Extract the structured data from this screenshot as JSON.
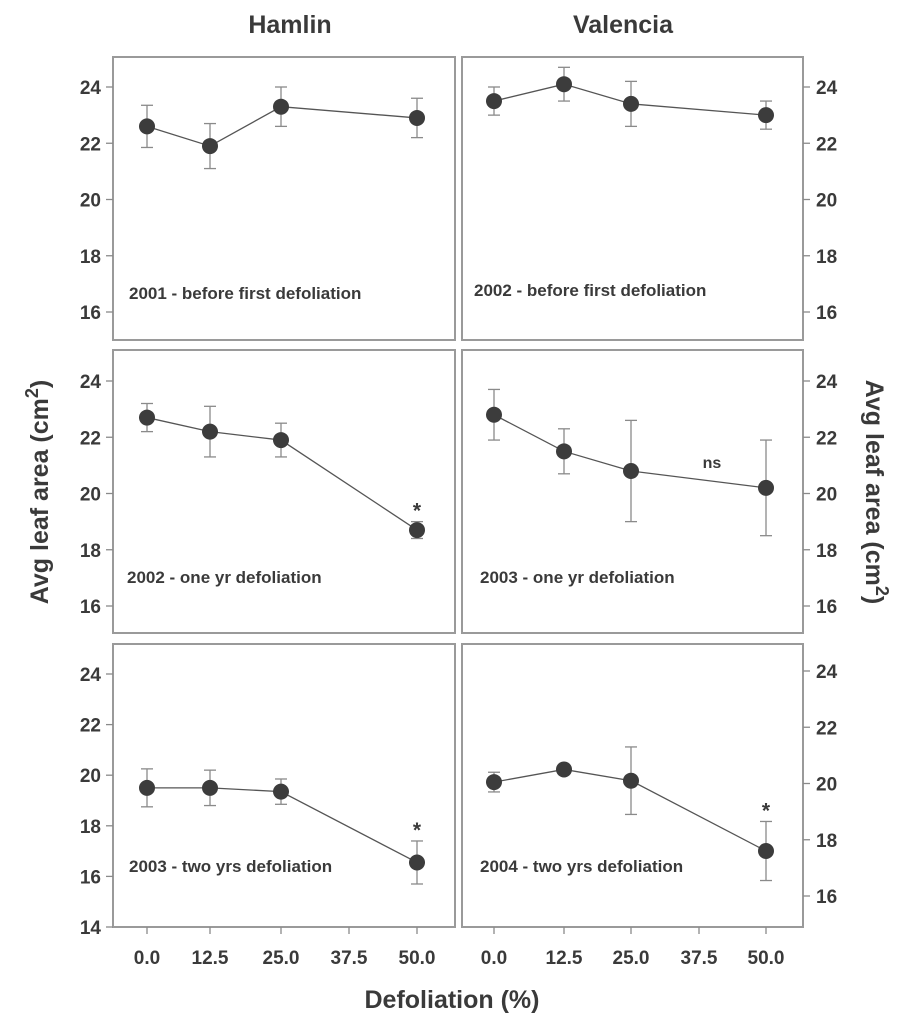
{
  "figure": {
    "column_titles": [
      "Hamlin",
      "Valencia"
    ],
    "xlabel": "Defoliation (%)",
    "ylabel_left": "Avg leaf area (cm",
    "ylabel_right": "Avg leaf area (cm",
    "ylabel_sup": "2",
    "ylabel_close": ")"
  },
  "chart_data": [
    {
      "type": "line",
      "panel": "Hamlin, row 1",
      "label": "2001 - before first defoliation",
      "x": [
        0.0,
        12.5,
        25.0,
        50.0
      ],
      "series": [
        {
          "values": [
            22.6,
            21.9,
            23.3,
            22.9
          ],
          "errors": [
            0.75,
            0.8,
            0.7,
            0.7
          ]
        }
      ],
      "significance": [
        null,
        null,
        null,
        null
      ],
      "ylim": [
        15,
        25
      ],
      "yticks": [
        16,
        18,
        20,
        22,
        24
      ],
      "ytick_labels": [
        "16",
        "18",
        "20",
        "22",
        "24"
      ],
      "ytick_side": "left"
    },
    {
      "type": "line",
      "panel": "Valencia, row 1",
      "label": "2002 - before first defoliation",
      "x": [
        0.0,
        12.5,
        25.0,
        50.0
      ],
      "series": [
        {
          "values": [
            23.5,
            24.1,
            23.4,
            23.0
          ],
          "errors": [
            0.5,
            0.6,
            0.8,
            0.5
          ]
        }
      ],
      "significance": [
        null,
        null,
        null,
        null
      ],
      "ylim": [
        15,
        25
      ],
      "yticks": [
        16,
        18,
        20,
        22,
        24
      ],
      "ytick_labels": [
        "16",
        "18",
        "20",
        "22",
        "24"
      ],
      "ytick_side": "right"
    },
    {
      "type": "line",
      "panel": "Hamlin, row 2",
      "label": "2002 - one yr defoliation",
      "x": [
        0.0,
        12.5,
        25.0,
        50.0
      ],
      "series": [
        {
          "values": [
            22.7,
            22.2,
            21.9,
            18.7
          ],
          "errors": [
            0.5,
            0.9,
            0.6,
            0.3
          ]
        }
      ],
      "significance": [
        null,
        null,
        null,
        "*"
      ],
      "ylim": [
        15,
        25
      ],
      "yticks": [
        16,
        18,
        20,
        22,
        24
      ],
      "ytick_labels": [
        "16",
        "18",
        "20",
        "22",
        "24"
      ],
      "ytick_side": "left"
    },
    {
      "type": "line",
      "panel": "Valencia, row 2",
      "label": "2003 - one yr defoliation",
      "x": [
        0.0,
        12.5,
        25.0,
        50.0
      ],
      "series": [
        {
          "values": [
            22.8,
            21.5,
            20.8,
            20.2
          ],
          "errors": [
            0.9,
            0.8,
            1.8,
            1.7
          ]
        }
      ],
      "annotation": "ns",
      "significance": [
        null,
        null,
        null,
        null
      ],
      "ylim": [
        15,
        25
      ],
      "yticks": [
        16,
        18,
        20,
        22,
        24
      ],
      "ytick_labels": [
        "16",
        "18",
        "20",
        "22",
        "24"
      ],
      "ytick_side": "right"
    },
    {
      "type": "line",
      "panel": "Hamlin, row 3",
      "label": "2003 - two yrs defoliation",
      "x": [
        0.0,
        12.5,
        25.0,
        50.0
      ],
      "series": [
        {
          "values": [
            19.5,
            19.5,
            19.35,
            16.55
          ],
          "errors": [
            0.75,
            0.7,
            0.5,
            0.85
          ]
        }
      ],
      "significance": [
        null,
        null,
        null,
        "*"
      ],
      "ylim": [
        14,
        25
      ],
      "yticks": [
        14,
        16,
        18,
        20,
        22,
        24
      ],
      "ytick_labels": [
        "14",
        "16",
        "18",
        "20",
        "22",
        "24"
      ],
      "ytick_side": "left",
      "xticks": [
        0.0,
        12.5,
        25.0,
        37.5,
        50.0
      ],
      "xtick_labels": [
        "0.0",
        "12.5",
        "25.0",
        "37.5",
        "50.0"
      ]
    },
    {
      "type": "line",
      "panel": "Valencia, row 3",
      "label": "2004 - two yrs defoliation",
      "x": [
        0.0,
        12.5,
        25.0,
        50.0
      ],
      "series": [
        {
          "values": [
            20.05,
            20.5,
            20.1,
            17.6
          ],
          "errors": [
            0.35,
            0.1,
            1.2,
            1.05
          ]
        }
      ],
      "significance": [
        null,
        null,
        null,
        "*"
      ],
      "ylim": [
        15,
        25
      ],
      "yticks": [
        16,
        18,
        20,
        22,
        24
      ],
      "ytick_labels": [
        "16",
        "18",
        "20",
        "22",
        "24"
      ],
      "ytick_side": "right",
      "xticks": [
        0.0,
        12.5,
        25.0,
        37.5,
        50.0
      ],
      "xtick_labels": [
        "0.0",
        "12.5",
        "25.0",
        "37.5",
        "50.0"
      ]
    }
  ]
}
